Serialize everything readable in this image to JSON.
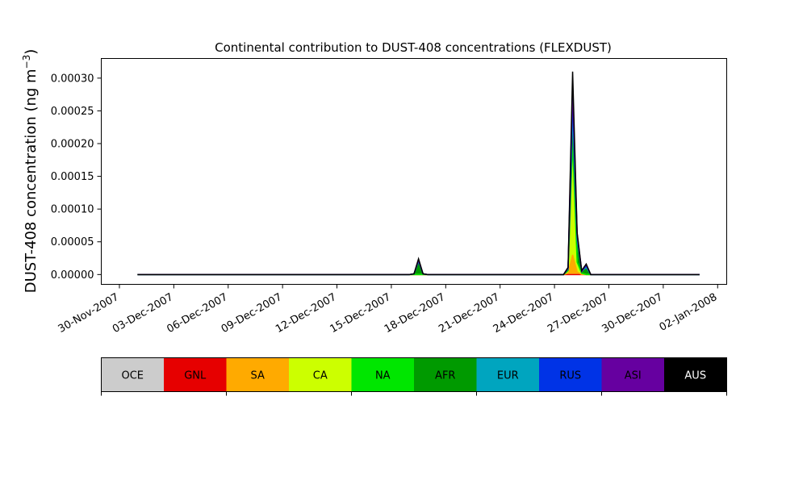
{
  "chart_data": {
    "type": "area",
    "title": "Continental contribution to DUST-408 concentrations (FLEXDUST)",
    "xlabel": "",
    "ylabel_main": "DUST-408 concentration (ng m",
    "ylabel_exp": "−3",
    "ylabel_close": ")",
    "x_axis": "date",
    "xlim": [
      "2007-11-29",
      "2008-01-02 12:00"
    ],
    "ylim": [
      -1.5e-05,
      0.00033
    ],
    "x_tick_dates": [
      "2007-11-30",
      "2007-12-03",
      "2007-12-06",
      "2007-12-09",
      "2007-12-12",
      "2007-12-15",
      "2007-12-18",
      "2007-12-21",
      "2007-12-24",
      "2007-12-27",
      "2007-12-30",
      "2008-01-02"
    ],
    "x_tick_labels": [
      "30-Nov-2007",
      "03-Dec-2007",
      "06-Dec-2007",
      "09-Dec-2007",
      "12-Dec-2007",
      "15-Dec-2007",
      "18-Dec-2007",
      "21-Dec-2007",
      "24-Dec-2007",
      "27-Dec-2007",
      "30-Dec-2007",
      "02-Jan-2008"
    ],
    "y_ticks": [
      0,
      5e-05,
      0.0001,
      0.00015,
      0.0002,
      0.00025,
      0.0003
    ],
    "y_tick_labels": [
      "0.00000",
      "0.00005",
      "0.00010",
      "0.00015",
      "0.00020",
      "0.00025",
      "0.00030"
    ],
    "x": [
      "2007-12-01",
      "2007-12-16 00:00",
      "2007-12-16 06:00",
      "2007-12-16 12:00",
      "2007-12-16 18:00",
      "2007-12-17 00:00",
      "2007-12-24 12:00",
      "2007-12-24 18:00",
      "2007-12-25 00:00",
      "2007-12-25 06:00",
      "2007-12-25 12:00",
      "2007-12-25 18:00",
      "2007-12-26 00:00",
      "2007-12-26 06:00",
      "2007-12-26 12:00",
      "2007-12-26 18:00",
      "2007-12-27 00:00",
      "2008-01-01"
    ],
    "series": [
      {
        "name": "OCE",
        "color": "#cccccc",
        "values": [
          0,
          0,
          0,
          0,
          0,
          0,
          0,
          0,
          0,
          0,
          0,
          0,
          0,
          0,
          0,
          0,
          0,
          0
        ]
      },
      {
        "name": "GNL",
        "color": "#e60000",
        "values": [
          0,
          0,
          0,
          0,
          0,
          0,
          0,
          0,
          0,
          0,
          0,
          0,
          0,
          0,
          0,
          0,
          0,
          0
        ]
      },
      {
        "name": "SA",
        "color": "#ffaa00",
        "values": [
          0,
          0,
          0,
          0,
          0,
          0,
          0,
          2e-06,
          3e-05,
          4e-06,
          0,
          0,
          0,
          0,
          0,
          0,
          0,
          0
        ]
      },
      {
        "name": "CA",
        "color": "#ccff00",
        "values": [
          0,
          0,
          0,
          0,
          0,
          0,
          0,
          3e-06,
          0.00015,
          1.2e-05,
          2e-06,
          0,
          0,
          0,
          0,
          0,
          0,
          0
        ]
      },
      {
        "name": "NA",
        "color": "#00e600",
        "values": [
          0,
          0,
          0,
          0,
          0,
          0,
          0,
          1e-06,
          2e-05,
          3e-06,
          0,
          0,
          0,
          0,
          0,
          0,
          0,
          0
        ]
      },
      {
        "name": "AFR",
        "color": "#009a00",
        "values": [
          0,
          0,
          1e-06,
          1.8e-05,
          1e-06,
          0,
          0,
          2e-06,
          2.5e-05,
          3e-05,
          3e-06,
          8e-06,
          0,
          0,
          0,
          0,
          0,
          0
        ]
      },
      {
        "name": "EUR",
        "color": "#00a5bf",
        "values": [
          0,
          0,
          0,
          2e-06,
          0,
          0,
          0,
          1e-06,
          2e-05,
          4e-06,
          0,
          3e-06,
          0,
          0,
          0,
          0,
          0,
          0
        ]
      },
      {
        "name": "RUS",
        "color": "#0033e6",
        "values": [
          0,
          0,
          0,
          1e-06,
          0,
          0,
          0,
          0,
          2e-05,
          6e-06,
          0,
          2e-06,
          0,
          0,
          0,
          0,
          0,
          0
        ]
      },
      {
        "name": "ASI",
        "color": "#6600a0",
        "values": [
          0,
          0,
          0,
          1e-06,
          0,
          0,
          0,
          1e-06,
          2e-05,
          3e-06,
          0,
          2e-06,
          0,
          0,
          0,
          0,
          0,
          0
        ]
      },
      {
        "name": "AUS",
        "color": "#000000",
        "values": [
          0,
          0,
          0,
          2e-06,
          0,
          0,
          0,
          1e-06,
          2.5e-05,
          2e-06,
          1e-06,
          1e-06,
          0,
          0,
          0,
          0,
          0,
          0
        ]
      }
    ],
    "grid": false,
    "legend_placement": "below"
  }
}
